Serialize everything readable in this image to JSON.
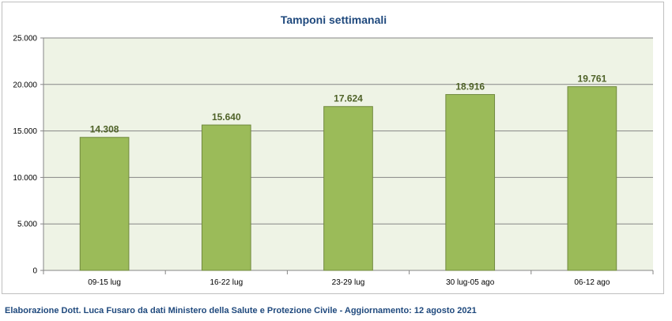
{
  "chart_data": {
    "type": "bar",
    "title": "Tamponi settimanali",
    "categories": [
      "09-15 lug",
      "16-22 lug",
      "23-29 lug",
      "30 lug-05 ago",
      "06-12 ago"
    ],
    "values": [
      14308,
      15640,
      17624,
      18916,
      19761
    ],
    "value_labels": [
      "14.308",
      "15.640",
      "17.624",
      "18.916",
      "19.761"
    ],
    "yticks": [
      0,
      5000,
      10000,
      15000,
      20000,
      25000
    ],
    "ytick_labels": [
      "0",
      "5.000",
      "10.000",
      "15.000",
      "20.000",
      "25.000"
    ],
    "ylim": [
      0,
      25000
    ],
    "xlabel": "",
    "ylabel": "",
    "grid": true,
    "legend": "none",
    "colors": {
      "bar_fill": "#9bbb59",
      "bar_stroke": "#71893f",
      "value_label": "#4f6228",
      "plot_background": "#eef3e5",
      "gridline": "#868686",
      "title": "#1f497d"
    }
  },
  "caption": "Elaborazione Dott. Luca Fusaro da dati Ministero della Salute e Protezione Civile - Aggiornamento: 12 agosto 2021"
}
